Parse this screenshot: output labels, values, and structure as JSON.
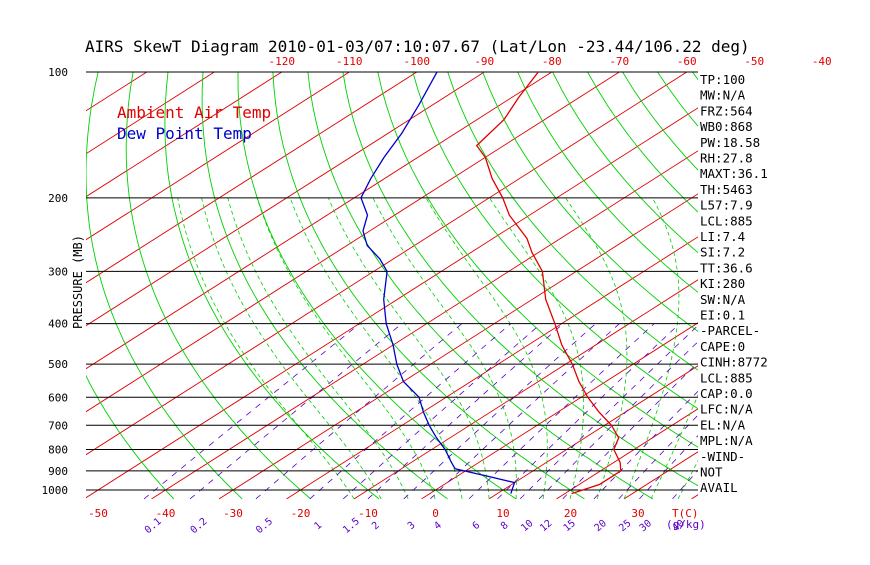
{
  "chart_data": {
    "type": "line",
    "title": "AIRS SkewT Diagram 2010-01-03/07:10:07.67 (Lat/Lon -23.44/106.22 deg)",
    "ylabel": "PRESSURE (MB)",
    "xlabel": "T(C)",
    "mixing_ratio_unit": "(g/kg)",
    "y_scale": "log",
    "ylim": [
      1050,
      100
    ],
    "xlim": [
      -52,
      45
    ],
    "pressure_ticks": [
      100,
      200,
      300,
      400,
      500,
      600,
      700,
      800,
      900,
      1000
    ],
    "top_temp_ticks": [
      -120,
      -110,
      -100,
      -90,
      -80,
      -70,
      -60,
      -50,
      -40
    ],
    "bottom_temp_ticks": [
      -50,
      -40,
      -30,
      -20,
      -10,
      0,
      10,
      20,
      30
    ],
    "mixing_ratio_labels": [
      {
        "label": "0.1",
        "w": 0.1
      },
      {
        "label": "0.2",
        "w": 0.2
      },
      {
        "label": "0.5",
        "w": 0.5
      },
      {
        "label": "1",
        "w": 1
      },
      {
        "label": "1.5",
        "w": 1.5
      },
      {
        "label": "2",
        "w": 2
      },
      {
        "label": "3",
        "w": 3
      },
      {
        "label": "4",
        "w": 4
      },
      {
        "label": "6",
        "w": 6
      },
      {
        "label": "8",
        "w": 8
      },
      {
        "label": "10",
        "w": 10
      },
      {
        "label": "12",
        "w": 12
      },
      {
        "label": "15",
        "w": 15
      },
      {
        "label": "20",
        "w": 20
      },
      {
        "label": "25",
        "w": 25
      },
      {
        "label": "30",
        "w": 30
      },
      {
        "label": "40",
        "w": 40
      }
    ],
    "grid": true,
    "legend_position": "top-left",
    "series": [
      {
        "name": "Ambient Air Temp",
        "color": "#e00000",
        "points": [
          {
            "p": 1020,
            "t": 21
          },
          {
            "p": 970,
            "t": 23
          },
          {
            "p": 940,
            "t": 23
          },
          {
            "p": 900,
            "t": 23
          },
          {
            "p": 860,
            "t": 21
          },
          {
            "p": 800,
            "t": 17
          },
          {
            "p": 750,
            "t": 15
          },
          {
            "p": 700,
            "t": 11
          },
          {
            "p": 650,
            "t": 6
          },
          {
            "p": 600,
            "t": 1
          },
          {
            "p": 550,
            "t": -4
          },
          {
            "p": 500,
            "t": -9
          },
          {
            "p": 450,
            "t": -15
          },
          {
            "p": 400,
            "t": -21
          },
          {
            "p": 350,
            "t": -28
          },
          {
            "p": 300,
            "t": -35
          },
          {
            "p": 270,
            "t": -41
          },
          {
            "p": 250,
            "t": -45
          },
          {
            "p": 220,
            "t": -53
          },
          {
            "p": 200,
            "t": -58
          },
          {
            "p": 180,
            "t": -64
          },
          {
            "p": 160,
            "t": -70
          },
          {
            "p": 150,
            "t": -74
          },
          {
            "p": 130,
            "t": -76
          },
          {
            "p": 115,
            "t": -79
          },
          {
            "p": 100,
            "t": -82
          }
        ]
      },
      {
        "name": "Dew Point Temp",
        "color": "#0000cc",
        "points": [
          {
            "p": 1020,
            "t": 12
          },
          {
            "p": 990,
            "t": 11
          },
          {
            "p": 960,
            "t": 10
          },
          {
            "p": 930,
            "t": 5
          },
          {
            "p": 890,
            "t": -2
          },
          {
            "p": 860,
            "t": -4
          },
          {
            "p": 800,
            "t": -8
          },
          {
            "p": 750,
            "t": -12
          },
          {
            "p": 700,
            "t": -16
          },
          {
            "p": 650,
            "t": -20
          },
          {
            "p": 600,
            "t": -24
          },
          {
            "p": 550,
            "t": -30
          },
          {
            "p": 500,
            "t": -35
          },
          {
            "p": 450,
            "t": -40
          },
          {
            "p": 400,
            "t": -46
          },
          {
            "p": 350,
            "t": -52
          },
          {
            "p": 300,
            "t": -58
          },
          {
            "p": 280,
            "t": -62
          },
          {
            "p": 260,
            "t": -67
          },
          {
            "p": 240,
            "t": -71
          },
          {
            "p": 220,
            "t": -74
          },
          {
            "p": 200,
            "t": -79
          },
          {
            "p": 180,
            "t": -82
          },
          {
            "p": 160,
            "t": -85
          },
          {
            "p": 140,
            "t": -88
          },
          {
            "p": 120,
            "t": -92
          },
          {
            "p": 100,
            "t": -97
          }
        ]
      }
    ]
  },
  "indices": [
    "TP:100",
    "MW:N/A",
    "FRZ:564",
    "WB0:868",
    "PW:18.58",
    "RH:27.8",
    "MAXT:36.1",
    "TH:5463",
    "L57:7.9",
    "LCL:885",
    "LI:7.4",
    "SI:7.2",
    "TT:36.6",
    "KI:280",
    "SW:N/A",
    "EI:0.1",
    "-PARCEL-",
    "CAPE:0",
    "CINH:8772",
    "LCL:885",
    "CAP:0.0",
    "LFC:N/A",
    "EL:N/A",
    "MPL:N/A",
    "-WIND-",
    "NOT",
    "AVAIL"
  ],
  "colors": {
    "isotherm": "#e00000",
    "dry_adiabat": "#00d000",
    "moist_adiabat": "#00d000",
    "mixing_ratio": "#5a00c8",
    "axis_temp_labels": "#e00000",
    "mixing_ratio_labels": "#5a00c8",
    "text": "#000000"
  }
}
